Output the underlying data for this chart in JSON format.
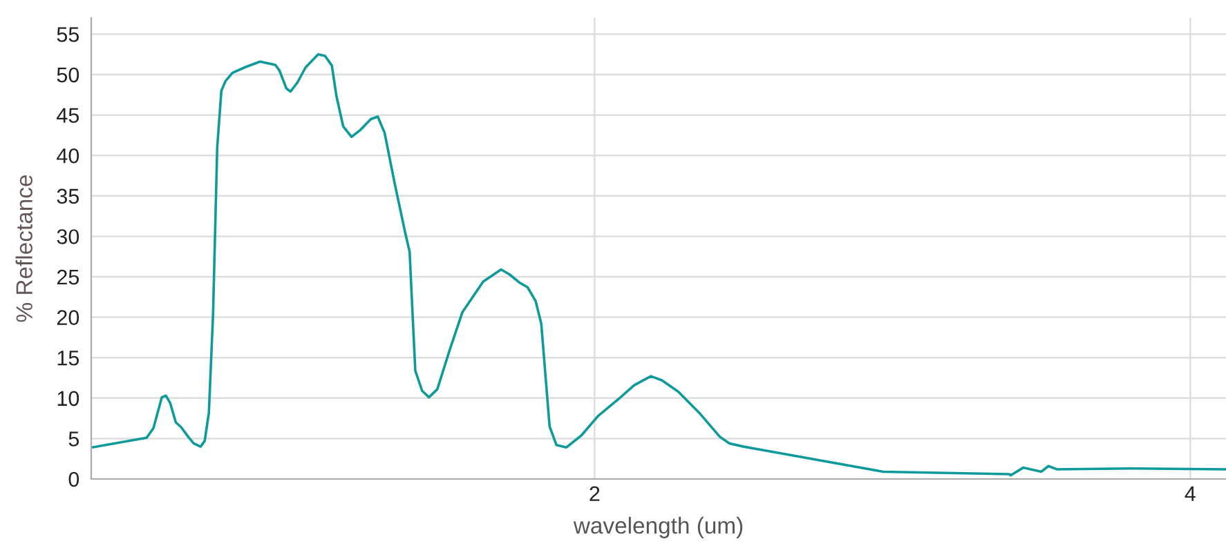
{
  "chart_data": {
    "type": "line",
    "xlabel": "wavelength (um)",
    "ylabel": "% Reflectance",
    "xlim": [
      0.31,
      4.12
    ],
    "xticks": [
      2,
      4
    ],
    "ylim": [
      0,
      57
    ],
    "yticks": [
      0,
      5,
      10,
      15,
      20,
      25,
      30,
      35,
      40,
      45,
      50,
      55
    ],
    "grid": true,
    "series": [
      {
        "color": "#0e9a9a",
        "x": [
          0.313,
          0.496,
          0.519,
          0.547,
          0.561,
          0.575,
          0.594,
          0.612,
          0.636,
          0.654,
          0.677,
          0.691,
          0.705,
          0.719,
          0.733,
          0.747,
          0.761,
          0.784,
          0.826,
          0.877,
          0.928,
          0.942,
          0.965,
          0.979,
          1.002,
          1.03,
          1.072,
          1.095,
          1.118,
          1.133,
          1.156,
          1.184,
          1.212,
          1.249,
          1.272,
          1.295,
          1.328,
          1.365,
          1.379,
          1.398,
          1.421,
          1.444,
          1.472,
          1.514,
          1.556,
          1.626,
          1.686,
          1.714,
          1.747,
          1.775,
          1.802,
          1.821,
          1.849,
          1.872,
          1.905,
          1.956,
          2.012,
          2.081,
          2.133,
          2.189,
          2.226,
          2.281,
          2.351,
          2.421,
          2.453,
          2.5,
          2.56,
          2.969,
          3.392,
          3.397,
          3.439,
          3.5,
          3.524,
          3.552,
          3.8,
          4.12
        ],
        "values": [
          3.9,
          5.1,
          6.3,
          10.1,
          10.3,
          9.4,
          7.0,
          6.4,
          5.2,
          4.4,
          4.0,
          4.7,
          8.2,
          20.3,
          41.0,
          48.0,
          49.2,
          50.2,
          50.9,
          51.6,
          51.2,
          50.5,
          48.3,
          47.9,
          49.0,
          50.9,
          52.5,
          52.3,
          51.1,
          47.4,
          43.6,
          42.3,
          43.1,
          44.5,
          44.8,
          42.8,
          36.7,
          30.3,
          28.1,
          13.4,
          10.9,
          10.1,
          11.1,
          16.0,
          20.6,
          24.4,
          25.9,
          25.3,
          24.3,
          23.7,
          22.0,
          19.2,
          6.5,
          4.2,
          3.9,
          5.4,
          7.8,
          9.9,
          11.6,
          12.7,
          12.2,
          10.8,
          8.2,
          5.2,
          4.4,
          4.0,
          3.6,
          0.9,
          0.6,
          0.45,
          1.4,
          0.9,
          1.6,
          1.2,
          1.3,
          1.2
        ]
      }
    ]
  }
}
